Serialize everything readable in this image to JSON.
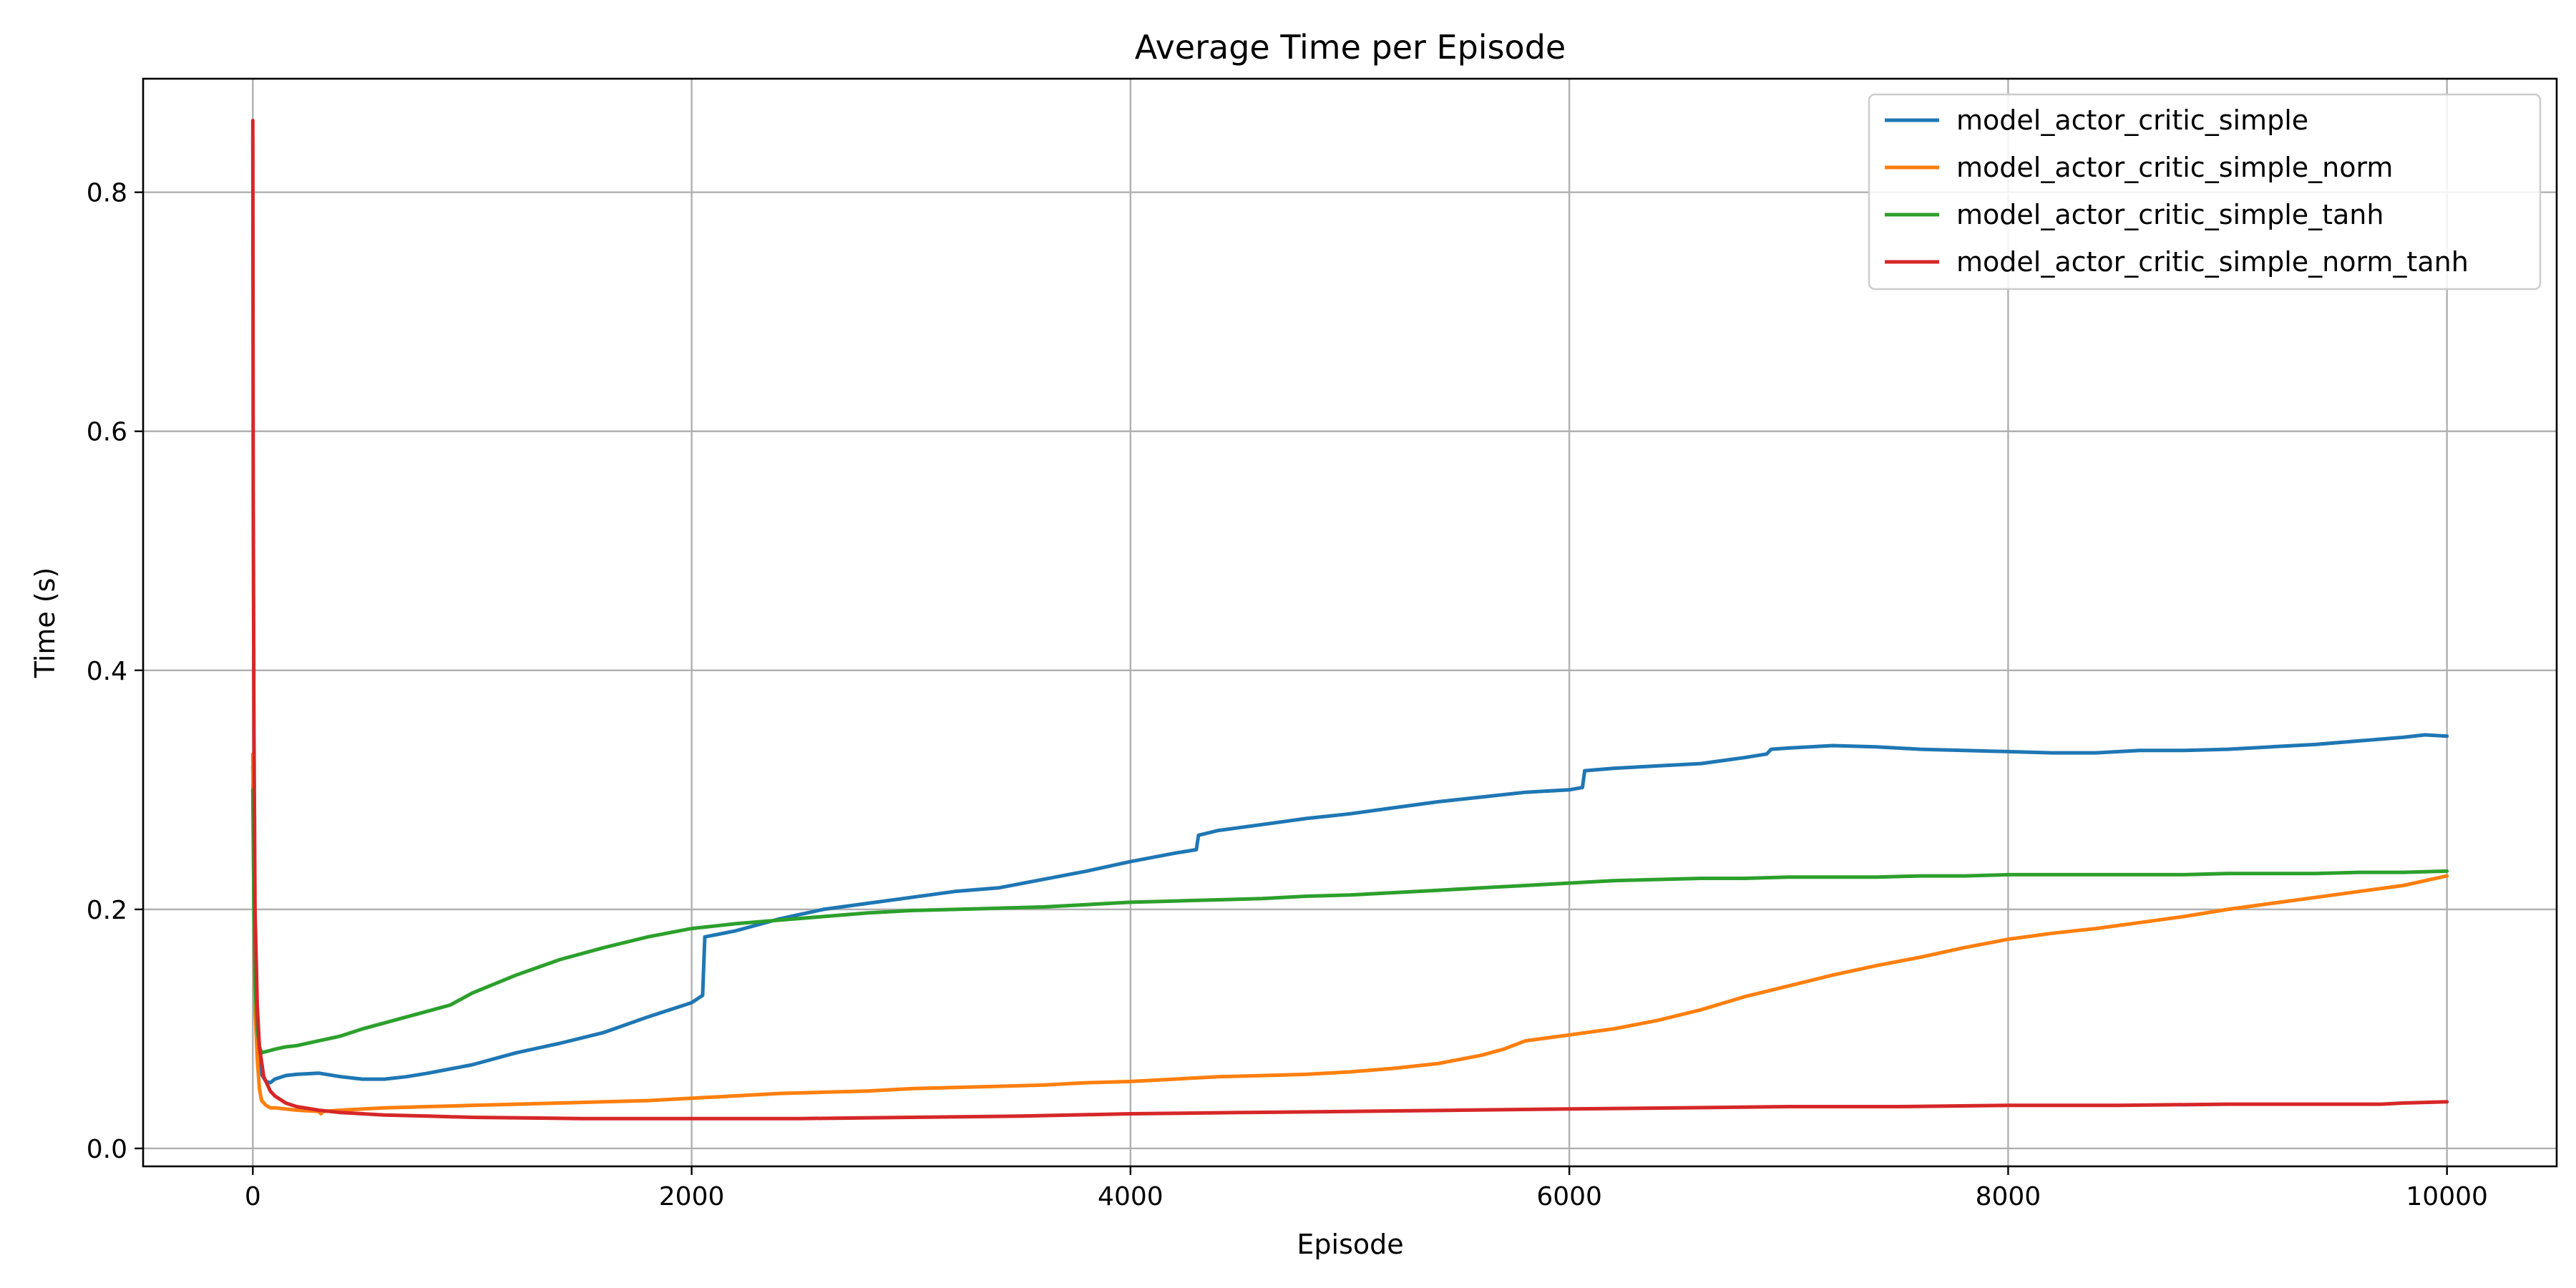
{
  "chart_data": {
    "type": "line",
    "title": "Average Time per Episode",
    "xlabel": "Episode",
    "ylabel": "Time (s)",
    "xlim": [
      -500,
      10500
    ],
    "ylim": [
      -0.015,
      0.895
    ],
    "xticks": [
      0,
      2000,
      4000,
      6000,
      8000,
      10000
    ],
    "yticks": [
      0.0,
      0.2,
      0.4,
      0.6,
      0.8
    ],
    "xtick_labels": [
      "0",
      "2000",
      "4000",
      "6000",
      "8000",
      "10000"
    ],
    "ytick_labels": [
      "0.0",
      "0.2",
      "0.4",
      "0.6",
      "0.8"
    ],
    "grid": true,
    "legend_position": "top-right",
    "series": [
      {
        "name": "model_actor_critic_simple",
        "color": "#1f77b4",
        "x": [
          0,
          5,
          10,
          20,
          30,
          40,
          60,
          80,
          100,
          150,
          200,
          300,
          400,
          500,
          600,
          700,
          800,
          1000,
          1200,
          1400,
          1600,
          1800,
          2000,
          2050,
          2060,
          2200,
          2400,
          2600,
          2800,
          3000,
          3200,
          3400,
          3600,
          3800,
          4000,
          4200,
          4300,
          4310,
          4400,
          4600,
          4800,
          5000,
          5200,
          5400,
          5600,
          5800,
          6000,
          6060,
          6070,
          6200,
          6400,
          6600,
          6800,
          6900,
          6920,
          7000,
          7200,
          7400,
          7600,
          7800,
          8000,
          8200,
          8400,
          8600,
          8800,
          9000,
          9200,
          9400,
          9600,
          9800,
          9900,
          10000
        ],
        "y": [
          0.32,
          0.26,
          0.16,
          0.1,
          0.075,
          0.062,
          0.056,
          0.055,
          0.058,
          0.061,
          0.062,
          0.063,
          0.06,
          0.058,
          0.058,
          0.06,
          0.063,
          0.07,
          0.08,
          0.088,
          0.097,
          0.11,
          0.122,
          0.128,
          0.177,
          0.182,
          0.192,
          0.2,
          0.205,
          0.21,
          0.215,
          0.218,
          0.225,
          0.232,
          0.24,
          0.247,
          0.25,
          0.262,
          0.266,
          0.271,
          0.276,
          0.28,
          0.285,
          0.29,
          0.294,
          0.298,
          0.3,
          0.302,
          0.316,
          0.318,
          0.32,
          0.322,
          0.327,
          0.33,
          0.334,
          0.335,
          0.337,
          0.336,
          0.334,
          0.333,
          0.332,
          0.331,
          0.331,
          0.333,
          0.333,
          0.334,
          0.336,
          0.338,
          0.341,
          0.344,
          0.346,
          0.345
        ]
      },
      {
        "name": "model_actor_critic_simple_norm",
        "color": "#ff7f0e",
        "x": [
          0,
          5,
          10,
          20,
          30,
          40,
          60,
          80,
          100,
          150,
          200,
          300,
          310,
          320,
          400,
          600,
          800,
          1000,
          1200,
          1400,
          1600,
          1800,
          2000,
          2200,
          2400,
          2600,
          2800,
          3000,
          3200,
          3400,
          3600,
          3800,
          4000,
          4200,
          4400,
          4600,
          4800,
          5000,
          5200,
          5400,
          5600,
          5700,
          5800,
          6000,
          6200,
          6400,
          6600,
          6800,
          7000,
          7200,
          7400,
          7600,
          7800,
          8000,
          8200,
          8400,
          8600,
          8800,
          9000,
          9200,
          9400,
          9600,
          9800,
          9900,
          10000
        ],
        "y": [
          0.33,
          0.2,
          0.12,
          0.075,
          0.05,
          0.04,
          0.036,
          0.034,
          0.034,
          0.033,
          0.032,
          0.031,
          0.029,
          0.031,
          0.032,
          0.034,
          0.035,
          0.036,
          0.037,
          0.038,
          0.039,
          0.04,
          0.042,
          0.044,
          0.046,
          0.047,
          0.048,
          0.05,
          0.051,
          0.052,
          0.053,
          0.055,
          0.056,
          0.058,
          0.06,
          0.061,
          0.062,
          0.064,
          0.067,
          0.071,
          0.078,
          0.083,
          0.09,
          0.095,
          0.1,
          0.107,
          0.116,
          0.127,
          0.136,
          0.145,
          0.153,
          0.16,
          0.168,
          0.175,
          0.18,
          0.184,
          0.189,
          0.194,
          0.2,
          0.205,
          0.21,
          0.215,
          0.22,
          0.224,
          0.228
        ]
      },
      {
        "name": "model_actor_critic_simple_tanh",
        "color": "#2ca02c",
        "x": [
          0,
          5,
          10,
          20,
          30,
          40,
          60,
          80,
          100,
          150,
          200,
          300,
          350,
          400,
          500,
          600,
          700,
          800,
          900,
          1000,
          1200,
          1400,
          1600,
          1800,
          2000,
          2200,
          2400,
          2600,
          2800,
          3000,
          3200,
          3400,
          3600,
          3800,
          4000,
          4200,
          4400,
          4600,
          4800,
          5000,
          5200,
          5400,
          5600,
          5800,
          6000,
          6200,
          6400,
          6600,
          6800,
          7000,
          7200,
          7400,
          7600,
          7800,
          8000,
          8200,
          8400,
          8600,
          8800,
          9000,
          9200,
          9400,
          9600,
          9800,
          10000
        ],
        "y": [
          0.3,
          0.2,
          0.14,
          0.1,
          0.085,
          0.08,
          0.081,
          0.082,
          0.083,
          0.085,
          0.086,
          0.09,
          0.092,
          0.094,
          0.1,
          0.105,
          0.11,
          0.115,
          0.12,
          0.13,
          0.145,
          0.158,
          0.168,
          0.177,
          0.184,
          0.188,
          0.191,
          0.194,
          0.197,
          0.199,
          0.2,
          0.201,
          0.202,
          0.204,
          0.206,
          0.207,
          0.208,
          0.209,
          0.211,
          0.212,
          0.214,
          0.216,
          0.218,
          0.22,
          0.222,
          0.224,
          0.225,
          0.226,
          0.226,
          0.227,
          0.227,
          0.227,
          0.228,
          0.228,
          0.229,
          0.229,
          0.229,
          0.229,
          0.229,
          0.23,
          0.23,
          0.23,
          0.231,
          0.231,
          0.232
        ]
      },
      {
        "name": "model_actor_critic_simple_norm_tanh",
        "color": "#d62728",
        "x": [
          0,
          2,
          5,
          10,
          20,
          30,
          50,
          80,
          100,
          150,
          200,
          300,
          400,
          600,
          800,
          1000,
          1500,
          2000,
          2500,
          3000,
          3500,
          4000,
          4500,
          5000,
          5500,
          6000,
          6500,
          7000,
          7500,
          8000,
          8500,
          9000,
          9500,
          9700,
          9800,
          10000
        ],
        "y": [
          0.86,
          0.55,
          0.35,
          0.2,
          0.12,
          0.085,
          0.06,
          0.048,
          0.044,
          0.038,
          0.035,
          0.032,
          0.03,
          0.028,
          0.027,
          0.026,
          0.025,
          0.025,
          0.025,
          0.026,
          0.027,
          0.029,
          0.03,
          0.031,
          0.032,
          0.033,
          0.034,
          0.035,
          0.035,
          0.036,
          0.036,
          0.037,
          0.037,
          0.037,
          0.038,
          0.039
        ]
      }
    ]
  }
}
